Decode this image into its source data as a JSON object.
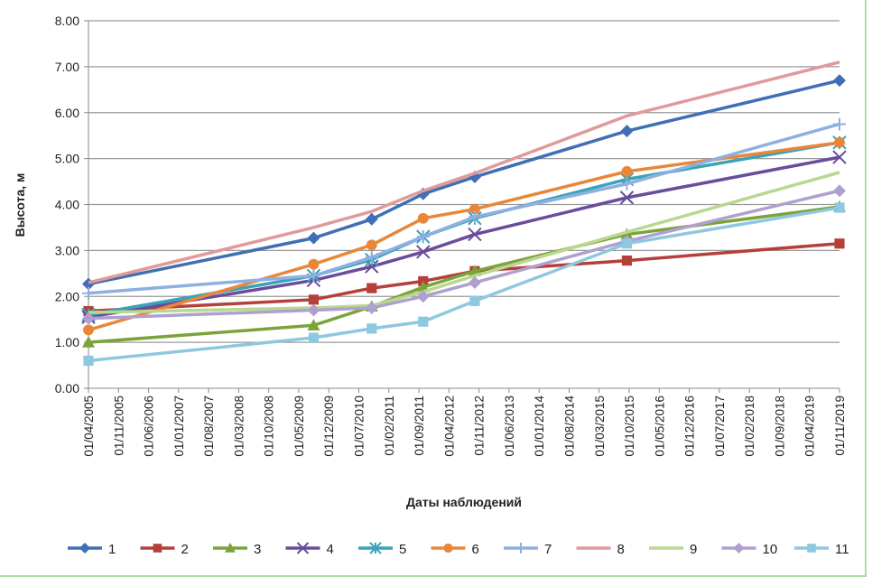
{
  "chart_data": {
    "type": "line",
    "xlabel": "Даты наблюдений",
    "ylabel": "Высота, м",
    "ylim": [
      0,
      8
    ],
    "yticks": [
      "0.00",
      "1.00",
      "2.00",
      "3.00",
      "4.00",
      "5.00",
      "6.00",
      "7.00",
      "8.00"
    ],
    "xticks": [
      "01/04/2005",
      "01/11/2005",
      "01/06/2006",
      "01/01/2007",
      "01/08/2007",
      "01/03/2008",
      "01/10/2008",
      "01/05/2009",
      "01/12/2009",
      "01/07/2010",
      "01/02/2011",
      "01/09/2011",
      "01/04/2012",
      "01/11/2012",
      "01/06/2013",
      "01/01/2014",
      "01/08/2014",
      "01/03/2015",
      "01/10/2015",
      "01/05/2016",
      "01/12/2016",
      "01/07/2017",
      "01/02/2018",
      "01/09/2018",
      "01/04/2019",
      "01/11/2019"
    ],
    "xlim": [
      "2005-04-01",
      "2019-11-01"
    ],
    "grid": "horizontal",
    "legend": "bottom",
    "x": [
      "2005-04-01",
      "2009-08-15",
      "2010-10-01",
      "2011-10-01",
      "2012-10-01",
      "2015-09-15",
      "2019-11-01"
    ],
    "series": [
      {
        "name": "1",
        "color": "#3f6fb5",
        "marker": "diamond",
        "values": [
          2.27,
          3.27,
          3.68,
          4.23,
          4.6,
          5.6,
          6.7
        ]
      },
      {
        "name": "2",
        "color": "#b5403a",
        "marker": "square",
        "values": [
          1.68,
          1.93,
          2.18,
          2.33,
          2.55,
          2.78,
          3.15
        ]
      },
      {
        "name": "3",
        "color": "#7aa33a",
        "marker": "triangle",
        "values": [
          1.0,
          1.37,
          1.78,
          2.2,
          2.55,
          3.35,
          3.95
        ]
      },
      {
        "name": "4",
        "color": "#6a4c9c",
        "marker": "x",
        "values": [
          1.55,
          2.35,
          2.65,
          2.97,
          3.35,
          4.15,
          5.03
        ]
      },
      {
        "name": "5",
        "color": "#3aa3b8",
        "marker": "asterisk",
        "values": [
          1.6,
          2.45,
          2.8,
          3.3,
          3.7,
          4.55,
          5.35
        ]
      },
      {
        "name": "6",
        "color": "#e8873a",
        "marker": "circle",
        "values": [
          1.27,
          2.7,
          3.12,
          3.7,
          3.9,
          4.72,
          5.35
        ]
      },
      {
        "name": "7",
        "color": "#8eb0e0",
        "marker": "plus",
        "values": [
          2.07,
          2.45,
          2.85,
          3.3,
          3.73,
          4.45,
          5.75
        ]
      },
      {
        "name": "8",
        "color": "#e09a9a",
        "marker": "none",
        "values": [
          2.3,
          3.5,
          3.85,
          4.3,
          4.68,
          5.93,
          7.1
        ]
      },
      {
        "name": "9",
        "color": "#b8d890",
        "marker": "none",
        "values": [
          1.65,
          1.75,
          1.8,
          2.1,
          2.45,
          3.4,
          4.7
        ]
      },
      {
        "name": "10",
        "color": "#b0a0d0",
        "marker": "diamond",
        "values": [
          1.52,
          1.7,
          1.75,
          2.0,
          2.3,
          3.2,
          4.3
        ]
      },
      {
        "name": "11",
        "color": "#8ec8e0",
        "marker": "square",
        "values": [
          0.6,
          1.1,
          1.3,
          1.45,
          1.9,
          3.15,
          3.93
        ]
      }
    ]
  }
}
